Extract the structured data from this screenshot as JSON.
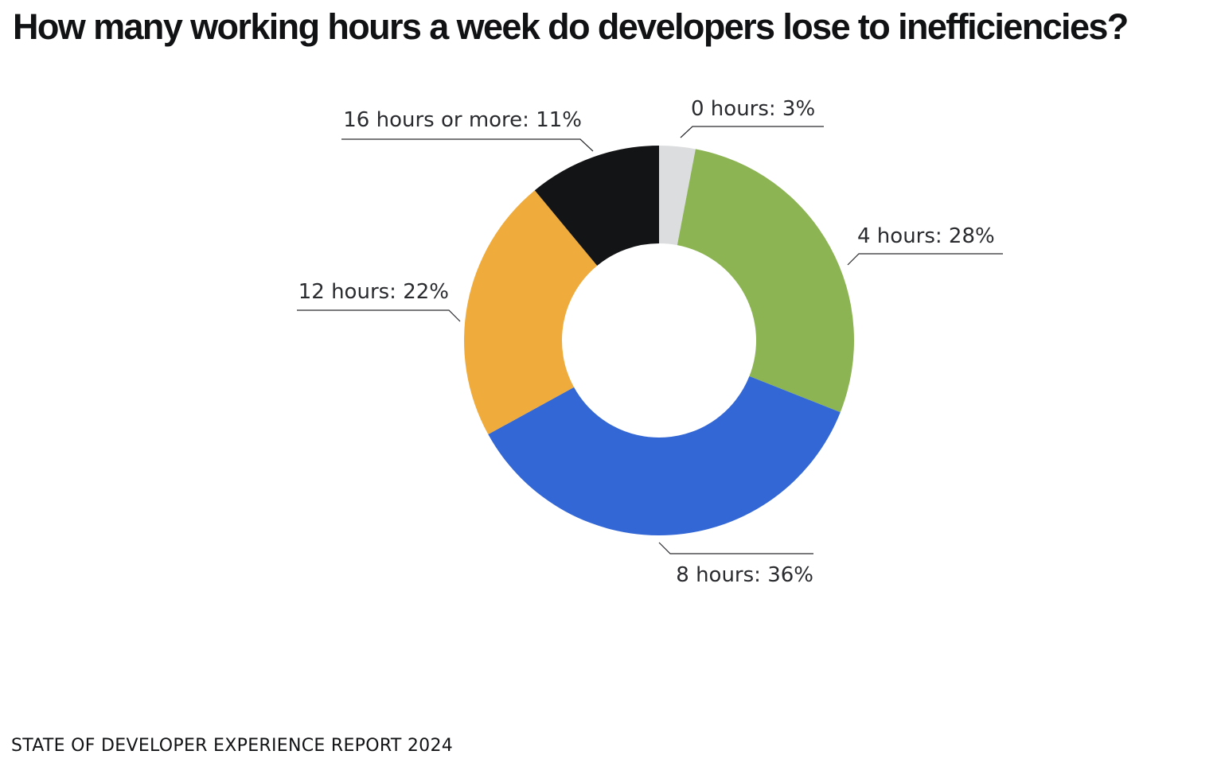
{
  "chart_data": {
    "type": "pie",
    "title": "How many working hours a week do developers lose to inefficiencies?",
    "categories": [
      "0 hours",
      "4 hours",
      "8 hours",
      "12 hours",
      "16 hours or more"
    ],
    "values": [
      3,
      28,
      36,
      22,
      11
    ],
    "unit": "%",
    "labels": [
      "0 hours: 3%",
      "4 hours: 28%",
      "8 hours: 36%",
      "12 hours: 22%",
      "16 hours or more: 11%"
    ],
    "colors": [
      "#dcdddf",
      "#8cb453",
      "#3367d6",
      "#efab3b",
      "#131416"
    ],
    "donut": true,
    "legend": "none"
  },
  "source": "STATE OF DEVELOPER EXPERIENCE REPORT 2024"
}
